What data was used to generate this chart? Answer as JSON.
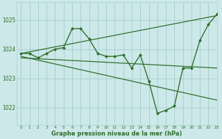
{
  "background_color": "#cce8e8",
  "grid_color": "#aad0d0",
  "line_color": "#2d6e2d",
  "xlabel": "Graphe pression niveau de la mer (hPa)",
  "xlim": [
    -0.5,
    23
  ],
  "ylim": [
    1021.4,
    1025.6
  ],
  "yticks": [
    1022,
    1023,
    1024,
    1025
  ],
  "xticks": [
    0,
    1,
    2,
    3,
    4,
    5,
    6,
    7,
    8,
    9,
    10,
    11,
    12,
    13,
    14,
    15,
    16,
    17,
    18,
    19,
    20,
    21,
    22,
    23
  ],
  "series": [
    {
      "x": [
        0,
        1,
        2,
        3,
        4,
        5,
        6,
        7,
        8,
        9,
        10,
        11,
        12,
        13,
        14,
        15,
        16,
        17,
        18,
        19,
        20,
        21,
        22,
        23
      ],
      "y": [
        1023.85,
        1023.85,
        1023.7,
        1023.85,
        1024.0,
        1024.05,
        1024.7,
        1024.7,
        1024.35,
        1023.85,
        1023.75,
        1023.75,
        1023.8,
        1023.35,
        1023.8,
        1022.9,
        1021.8,
        1021.9,
        1022.05,
        1023.35,
        1023.35,
        1024.3,
        1024.85,
        1025.2
      ],
      "marker": true,
      "lw": 1.0
    },
    {
      "x": [
        0,
        23
      ],
      "y": [
        1023.85,
        1025.15
      ],
      "marker": false,
      "lw": 0.9
    },
    {
      "x": [
        0,
        23
      ],
      "y": [
        1023.7,
        1023.35
      ],
      "marker": false,
      "lw": 0.9
    },
    {
      "x": [
        0,
        23
      ],
      "y": [
        1023.75,
        1022.25
      ],
      "marker": false,
      "lw": 0.9
    }
  ]
}
